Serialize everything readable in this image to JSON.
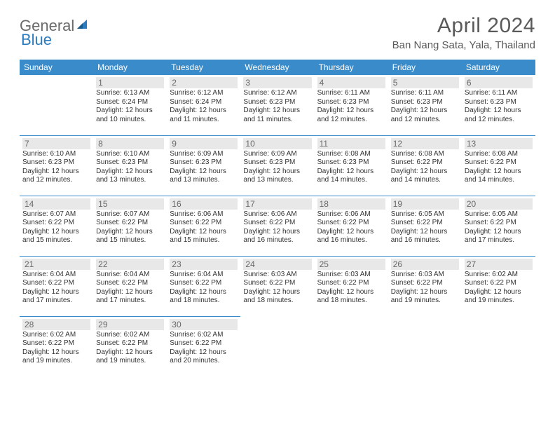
{
  "brand": {
    "part1": "General",
    "part2": "Blue"
  },
  "title": "April 2024",
  "location": "Ban Nang Sata, Yala, Thailand",
  "header_bg": "#3a8bc9",
  "weekdays": [
    "Sunday",
    "Monday",
    "Tuesday",
    "Wednesday",
    "Thursday",
    "Friday",
    "Saturday"
  ],
  "weeks": [
    [
      null,
      {
        "n": "1",
        "sr": "6:13 AM",
        "ss": "6:24 PM",
        "dl": "12 hours and 10 minutes."
      },
      {
        "n": "2",
        "sr": "6:12 AM",
        "ss": "6:24 PM",
        "dl": "12 hours and 11 minutes."
      },
      {
        "n": "3",
        "sr": "6:12 AM",
        "ss": "6:23 PM",
        "dl": "12 hours and 11 minutes."
      },
      {
        "n": "4",
        "sr": "6:11 AM",
        "ss": "6:23 PM",
        "dl": "12 hours and 12 minutes."
      },
      {
        "n": "5",
        "sr": "6:11 AM",
        "ss": "6:23 PM",
        "dl": "12 hours and 12 minutes."
      },
      {
        "n": "6",
        "sr": "6:11 AM",
        "ss": "6:23 PM",
        "dl": "12 hours and 12 minutes."
      }
    ],
    [
      {
        "n": "7",
        "sr": "6:10 AM",
        "ss": "6:23 PM",
        "dl": "12 hours and 12 minutes."
      },
      {
        "n": "8",
        "sr": "6:10 AM",
        "ss": "6:23 PM",
        "dl": "12 hours and 13 minutes."
      },
      {
        "n": "9",
        "sr": "6:09 AM",
        "ss": "6:23 PM",
        "dl": "12 hours and 13 minutes."
      },
      {
        "n": "10",
        "sr": "6:09 AM",
        "ss": "6:23 PM",
        "dl": "12 hours and 13 minutes."
      },
      {
        "n": "11",
        "sr": "6:08 AM",
        "ss": "6:23 PM",
        "dl": "12 hours and 14 minutes."
      },
      {
        "n": "12",
        "sr": "6:08 AM",
        "ss": "6:22 PM",
        "dl": "12 hours and 14 minutes."
      },
      {
        "n": "13",
        "sr": "6:08 AM",
        "ss": "6:22 PM",
        "dl": "12 hours and 14 minutes."
      }
    ],
    [
      {
        "n": "14",
        "sr": "6:07 AM",
        "ss": "6:22 PM",
        "dl": "12 hours and 15 minutes."
      },
      {
        "n": "15",
        "sr": "6:07 AM",
        "ss": "6:22 PM",
        "dl": "12 hours and 15 minutes."
      },
      {
        "n": "16",
        "sr": "6:06 AM",
        "ss": "6:22 PM",
        "dl": "12 hours and 15 minutes."
      },
      {
        "n": "17",
        "sr": "6:06 AM",
        "ss": "6:22 PM",
        "dl": "12 hours and 16 minutes."
      },
      {
        "n": "18",
        "sr": "6:06 AM",
        "ss": "6:22 PM",
        "dl": "12 hours and 16 minutes."
      },
      {
        "n": "19",
        "sr": "6:05 AM",
        "ss": "6:22 PM",
        "dl": "12 hours and 16 minutes."
      },
      {
        "n": "20",
        "sr": "6:05 AM",
        "ss": "6:22 PM",
        "dl": "12 hours and 17 minutes."
      }
    ],
    [
      {
        "n": "21",
        "sr": "6:04 AM",
        "ss": "6:22 PM",
        "dl": "12 hours and 17 minutes."
      },
      {
        "n": "22",
        "sr": "6:04 AM",
        "ss": "6:22 PM",
        "dl": "12 hours and 17 minutes."
      },
      {
        "n": "23",
        "sr": "6:04 AM",
        "ss": "6:22 PM",
        "dl": "12 hours and 18 minutes."
      },
      {
        "n": "24",
        "sr": "6:03 AM",
        "ss": "6:22 PM",
        "dl": "12 hours and 18 minutes."
      },
      {
        "n": "25",
        "sr": "6:03 AM",
        "ss": "6:22 PM",
        "dl": "12 hours and 18 minutes."
      },
      {
        "n": "26",
        "sr": "6:03 AM",
        "ss": "6:22 PM",
        "dl": "12 hours and 19 minutes."
      },
      {
        "n": "27",
        "sr": "6:02 AM",
        "ss": "6:22 PM",
        "dl": "12 hours and 19 minutes."
      }
    ],
    [
      {
        "n": "28",
        "sr": "6:02 AM",
        "ss": "6:22 PM",
        "dl": "12 hours and 19 minutes."
      },
      {
        "n": "29",
        "sr": "6:02 AM",
        "ss": "6:22 PM",
        "dl": "12 hours and 19 minutes."
      },
      {
        "n": "30",
        "sr": "6:02 AM",
        "ss": "6:22 PM",
        "dl": "12 hours and 20 minutes."
      },
      null,
      null,
      null,
      null
    ]
  ]
}
